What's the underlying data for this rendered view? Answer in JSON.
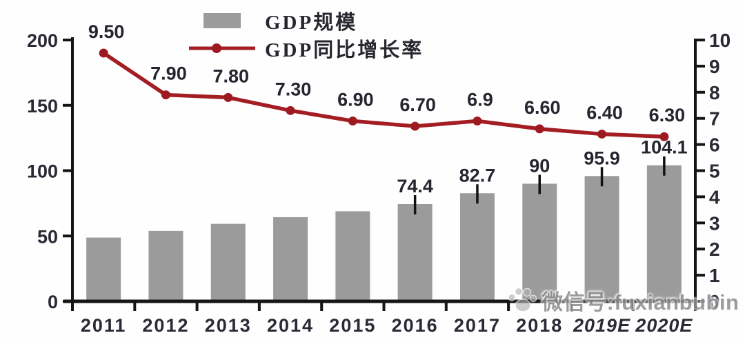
{
  "colors": {
    "bar": "#9b9b9b",
    "line": "#a31d23",
    "marker": "#9e1a21",
    "label_text": "#25252f",
    "tick_text": "#2a2a36",
    "axis": "#151515",
    "whisker": "#111111",
    "watermark": "#8f8f8f"
  },
  "legend": {
    "items": [
      {
        "label": "GDP规模",
        "swatch": "gray-bar"
      },
      {
        "label": "GDP同比增长率",
        "swatch": "red-line-marker"
      }
    ]
  },
  "watermark": {
    "icon": "paw-icon",
    "text": "微信号:fuxianbubin"
  },
  "chart_data": {
    "type": "bar",
    "subtype": "combo-bar-line-dual-axis",
    "title": "",
    "categories": [
      "2011",
      "2012",
      "2013",
      "2014",
      "2015",
      "2016",
      "2017",
      "2018",
      "2019E",
      "2020E"
    ],
    "series": [
      {
        "name": "GDP规模",
        "type": "bar",
        "axis": "left",
        "values": [
          48.8,
          53.9,
          59.3,
          64.4,
          68.9,
          74.4,
          82.7,
          90,
          95.9,
          104.1
        ],
        "labels": [
          "",
          "",
          "",
          "",
          "",
          "74.4",
          "82.7",
          "90",
          "95.9",
          "104.1"
        ]
      },
      {
        "name": "GDP同比增长率",
        "type": "line",
        "axis": "right",
        "values": [
          9.5,
          7.9,
          7.8,
          7.3,
          6.9,
          6.7,
          6.9,
          6.6,
          6.4,
          6.3
        ],
        "labels": [
          "9.50",
          "7.90",
          "7.80",
          "7.30",
          "6.90",
          "6.70",
          "6.9",
          "6.60",
          "6.40",
          "6.30"
        ]
      }
    ],
    "left_axis": {
      "range": [
        0,
        200
      ],
      "ticks": [
        0,
        50,
        100,
        150,
        200
      ]
    },
    "right_axis": {
      "range": [
        0,
        10
      ],
      "ticks": [
        0,
        1,
        2,
        3,
        4,
        5,
        6,
        7,
        8,
        9,
        10
      ]
    },
    "xlabel": "",
    "ylabel": "",
    "grid": false,
    "legend_position": "top-center"
  }
}
